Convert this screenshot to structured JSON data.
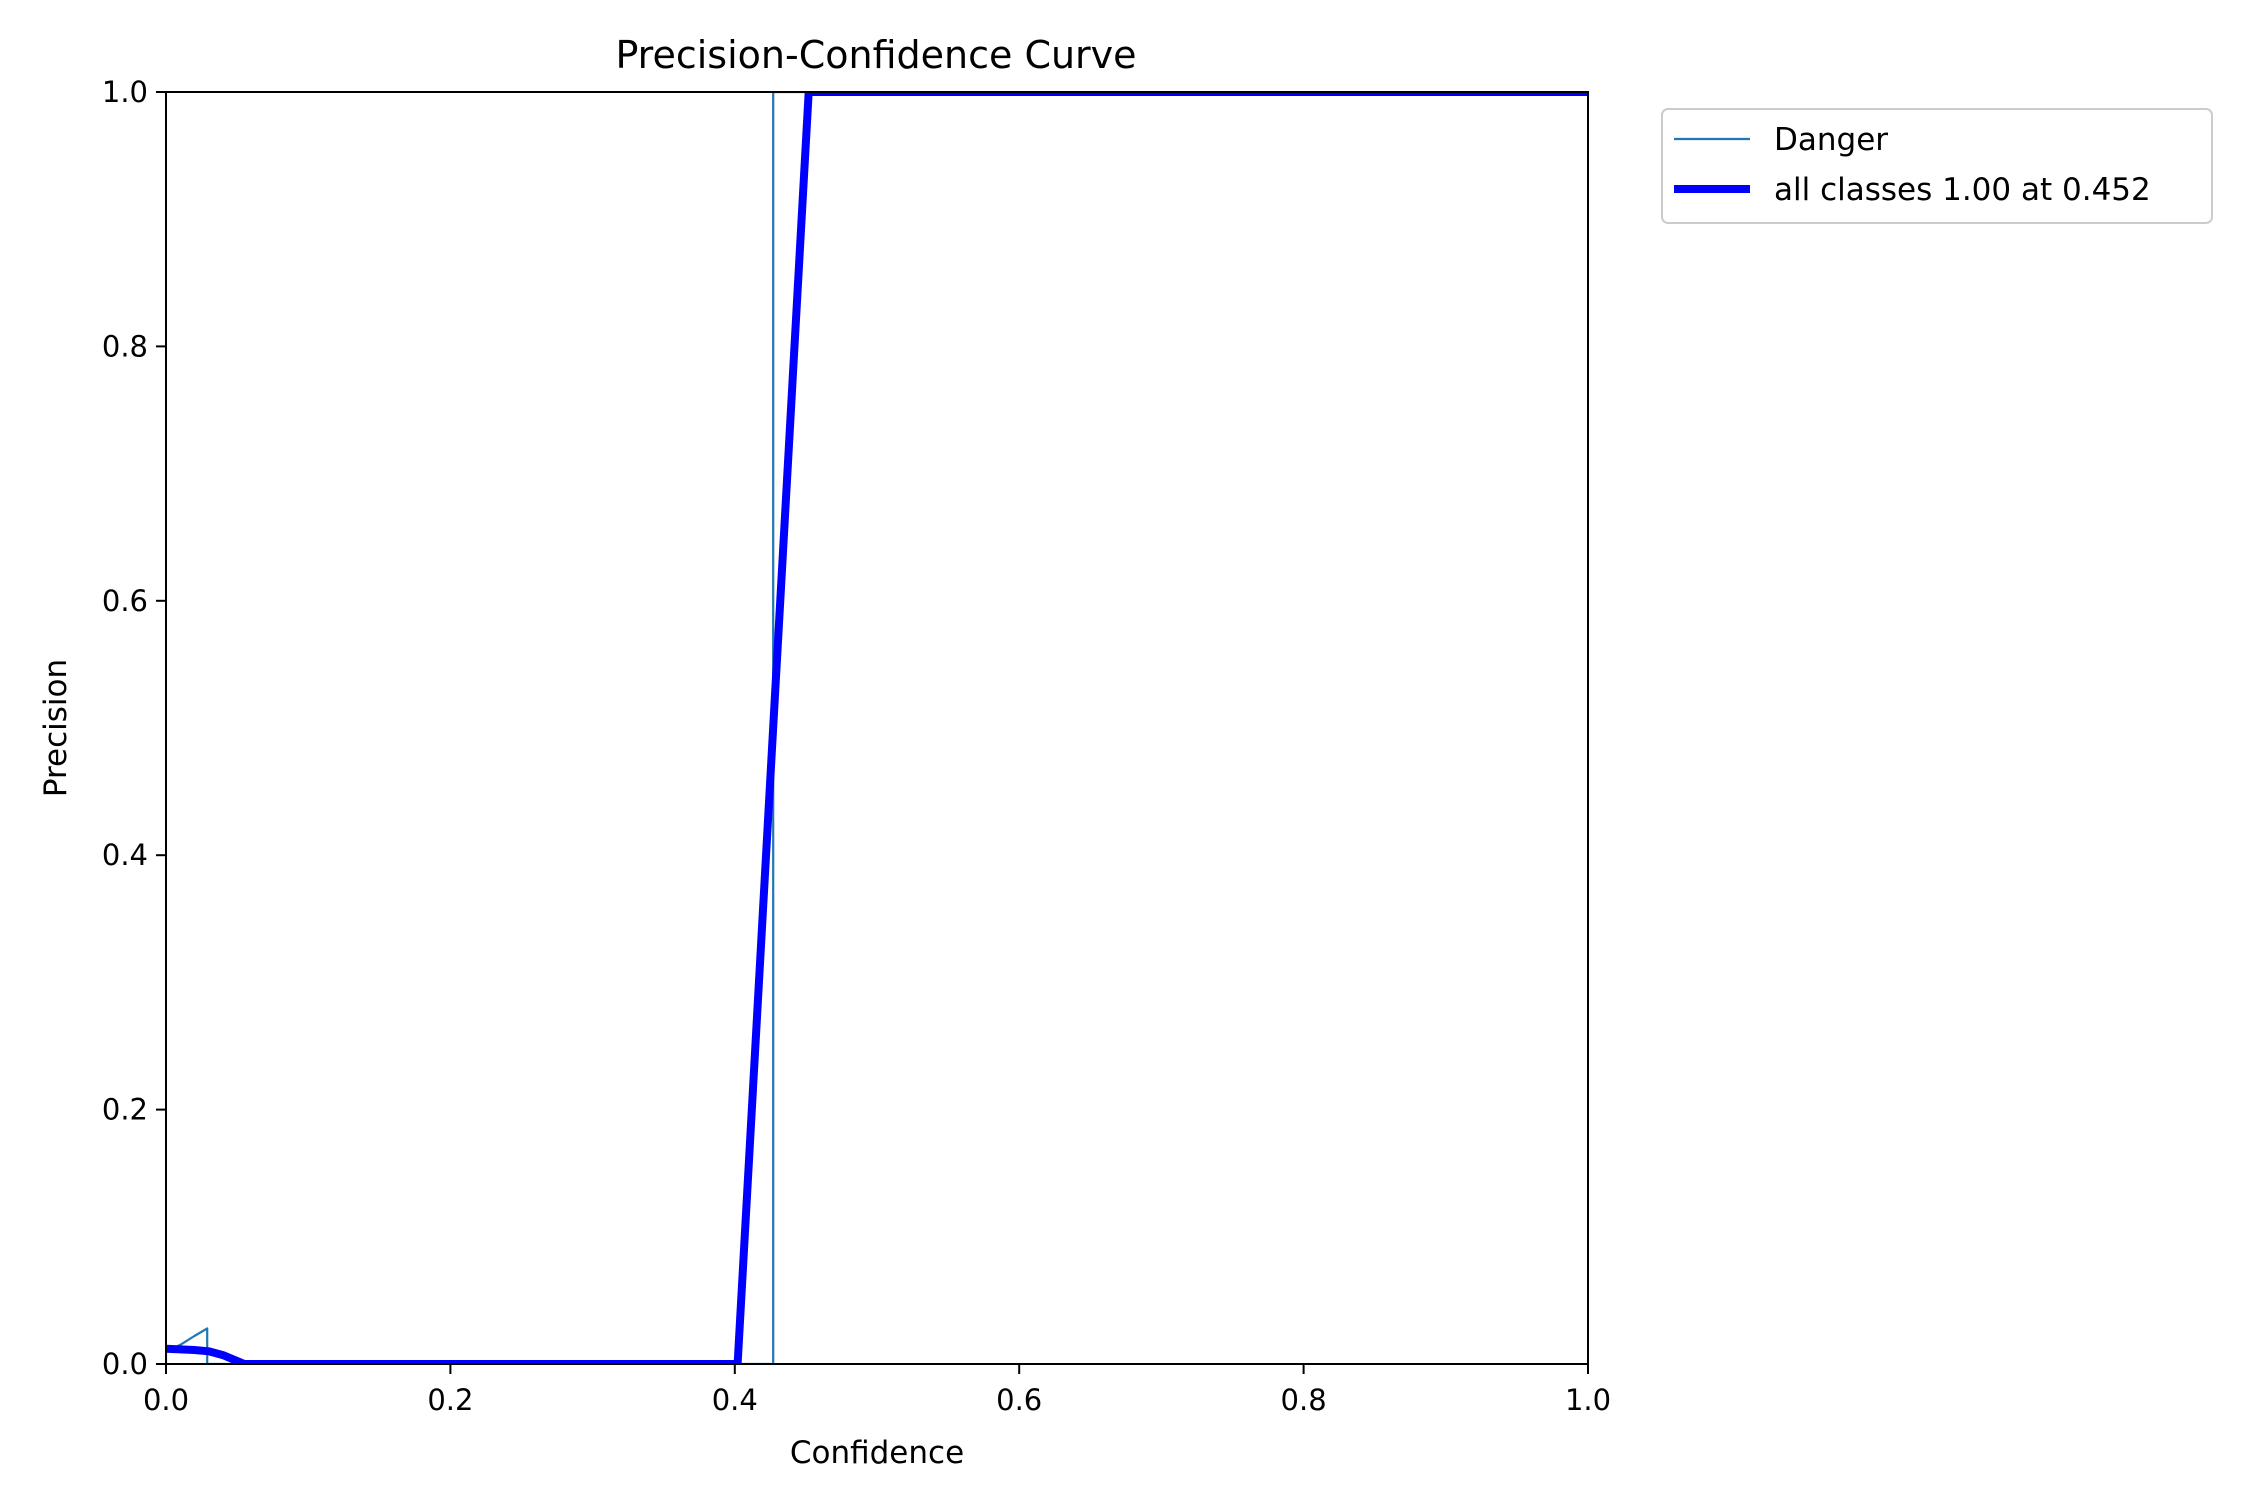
{
  "chart_data": {
    "type": "line",
    "title": "Precision-Confidence Curve",
    "xlabel": "Confidence",
    "ylabel": "Precision",
    "xlim": [
      0,
      1
    ],
    "ylim": [
      0,
      1
    ],
    "x_ticks": [
      "0.0",
      "0.2",
      "0.4",
      "0.6",
      "0.8",
      "1.0"
    ],
    "y_ticks": [
      "0.0",
      "0.2",
      "0.4",
      "0.6",
      "0.8",
      "1.0"
    ],
    "grid": false,
    "legend_position": "outside top-right",
    "series": [
      {
        "name": "Danger",
        "color": "#1f77b4",
        "style": "thin",
        "x": [
          0.0,
          0.0,
          0.01,
          0.02,
          0.029,
          0.029,
          0.03,
          0.4,
          0.427,
          0.427,
          0.428,
          1.0
        ],
        "y": [
          0.0,
          0.01,
          0.015,
          0.022,
          0.028,
          0.0,
          0.0,
          0.0,
          0.0,
          1.0,
          1.0,
          1.0
        ]
      },
      {
        "name": "all classes 1.00 at 0.452",
        "color": "#0000ff",
        "style": "thick",
        "x": [
          0.0,
          0.02,
          0.03,
          0.04,
          0.055,
          0.1,
          0.3,
          0.4,
          0.402,
          0.452,
          0.5,
          1.0
        ],
        "y": [
          0.012,
          0.011,
          0.01,
          0.007,
          0.0,
          0.0,
          0.0,
          0.0,
          0.0,
          1.0,
          1.0,
          1.0
        ]
      }
    ]
  }
}
